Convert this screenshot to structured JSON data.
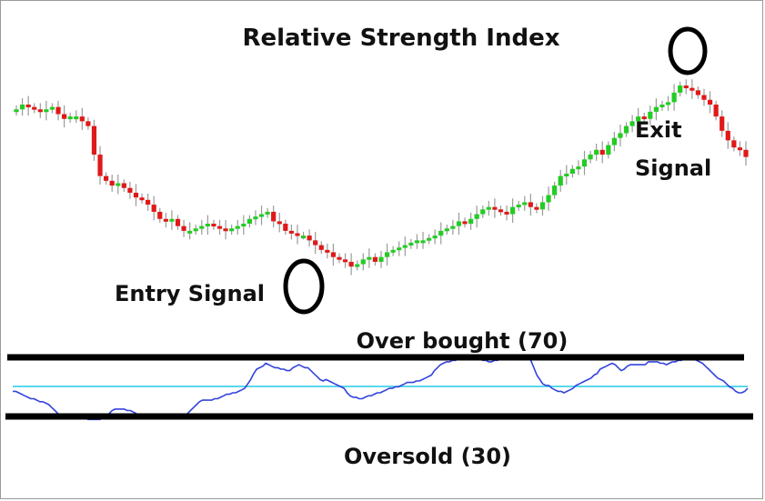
{
  "chart_data": {
    "type": "candlestick-with-rsi",
    "title": "Relative Strength Index",
    "annotations": {
      "entry_signal": "Entry Signal",
      "exit_signal_line1": "Exit",
      "exit_signal_line2": "Signal",
      "overbought": "Over bought (70)",
      "oversold": "Oversold (30)"
    },
    "colors": {
      "up": "#22cc22",
      "down": "#e01818",
      "wick": "#9a9a9a",
      "rsi_line": "#3344dd",
      "midline": "#5ad8ee",
      "threshold": "#000000"
    },
    "rsi_levels": {
      "overbought": 70,
      "oversold": 30,
      "midline": 50
    },
    "close": [
      77,
      79,
      78,
      77,
      76,
      77,
      78,
      75,
      73,
      74,
      74,
      72,
      70,
      58,
      49,
      47,
      45,
      46,
      44,
      42,
      40,
      39,
      37,
      34,
      31,
      30,
      31,
      28,
      26,
      26,
      27,
      28,
      29,
      28,
      27,
      26,
      27,
      28,
      29,
      31,
      32,
      33,
      34,
      30,
      29,
      26,
      25,
      24,
      24,
      22,
      20,
      18,
      17,
      15,
      14,
      13,
      11,
      12,
      14,
      15,
      13,
      15,
      17,
      18,
      19,
      20,
      21,
      22,
      22,
      23,
      24,
      26,
      27,
      28,
      30,
      29,
      31,
      33,
      35,
      36,
      35,
      34,
      33,
      36,
      37,
      38,
      36,
      35,
      38,
      41,
      45,
      49,
      50,
      52,
      53,
      56,
      58,
      60,
      58,
      62,
      65,
      67,
      70,
      72,
      74,
      73,
      76,
      78,
      79,
      80,
      84,
      87,
      86,
      85,
      83,
      81,
      79,
      74,
      68,
      64,
      61,
      60,
      57
    ],
    "rsi": [
      47,
      47,
      46,
      45,
      44,
      43,
      42,
      42,
      41,
      40,
      40,
      39,
      38,
      36,
      34,
      32,
      31,
      31,
      30,
      30,
      29,
      29,
      29,
      29,
      29,
      28,
      28,
      28,
      28,
      28,
      29,
      30,
      32,
      34,
      35,
      35,
      35,
      35,
      34,
      34,
      33,
      32,
      31,
      31,
      30,
      30,
      29,
      29,
      29,
      29,
      29,
      29,
      29,
      29,
      29,
      30,
      30,
      31,
      32,
      34,
      36,
      38,
      40,
      41,
      41,
      41,
      41,
      42,
      42,
      43,
      44,
      45,
      45,
      46,
      46,
      47,
      48,
      49,
      52,
      55,
      59,
      62,
      63,
      64,
      66,
      65,
      64,
      63,
      63,
      62,
      62,
      61,
      61,
      63,
      64,
      65,
      64,
      63,
      63,
      61,
      59,
      57,
      55,
      54,
      55,
      54,
      53,
      52,
      51,
      50,
      49,
      46,
      44,
      43,
      43,
      42,
      42,
      43,
      44,
      44,
      45,
      46,
      46,
      47,
      48,
      49,
      49,
      50,
      50,
      51,
      52,
      53,
      53,
      53,
      54,
      54,
      55,
      56,
      57,
      58,
      61,
      63,
      65,
      66,
      67,
      67,
      68,
      68,
      69,
      70,
      70,
      70,
      69,
      69,
      69,
      69,
      68,
      68,
      67,
      67,
      68,
      68,
      69,
      69,
      70,
      70,
      70,
      70,
      70,
      71,
      71,
      70,
      68,
      63,
      58,
      55,
      52,
      51,
      51,
      49,
      48,
      47,
      47,
      46,
      47,
      48,
      49,
      51,
      52,
      53,
      54,
      55,
      56,
      58,
      59,
      62,
      63,
      64,
      65,
      66,
      65,
      63,
      61,
      62,
      64,
      65,
      65,
      65,
      65,
      65,
      65,
      67,
      67,
      67,
      67,
      66,
      66,
      65,
      66,
      67,
      67,
      68,
      68,
      69,
      69,
      70,
      69,
      68,
      67,
      66,
      64,
      62,
      60,
      58,
      56,
      55,
      54,
      52,
      50,
      49,
      47,
      46,
      46,
      47,
      49
    ]
  }
}
